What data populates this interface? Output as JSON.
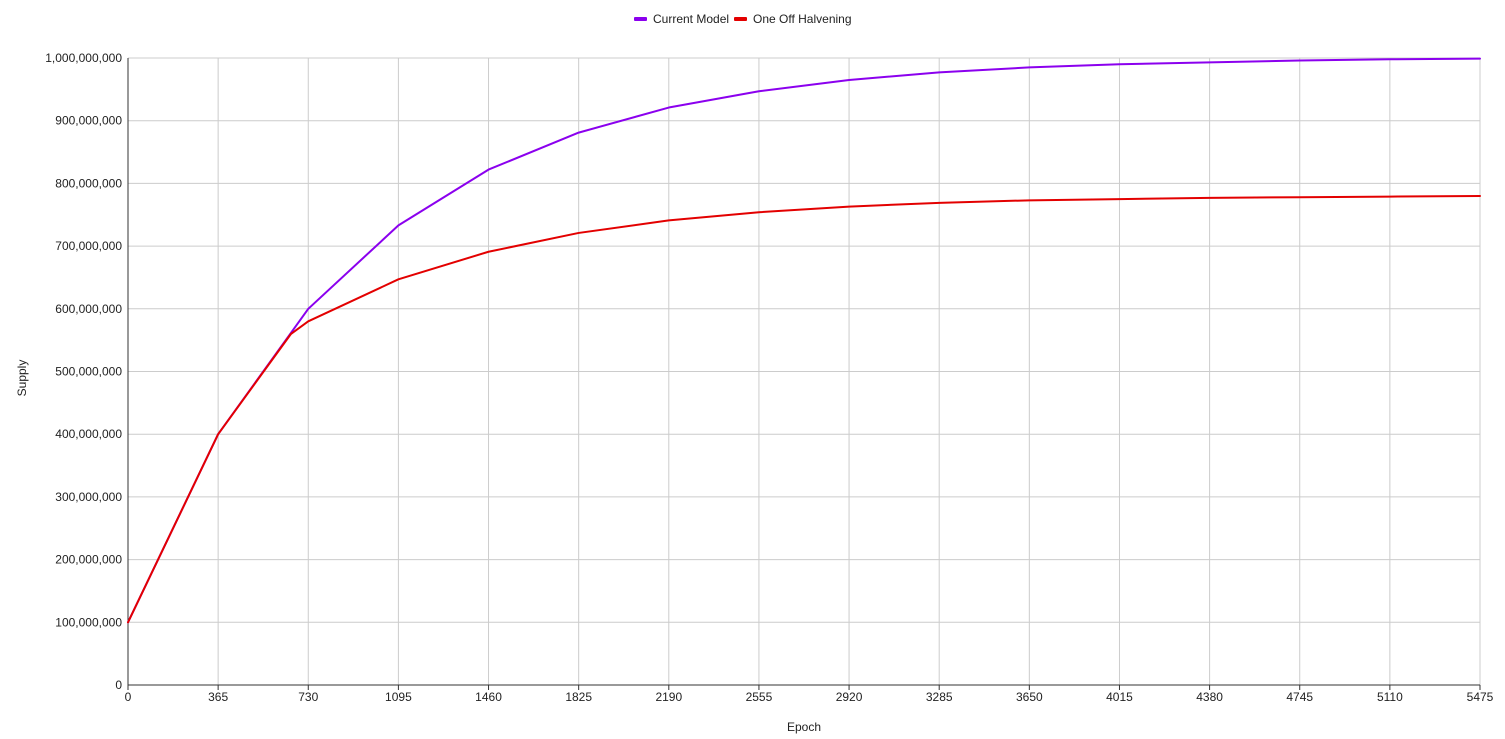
{
  "chart_data": {
    "type": "line",
    "title": "",
    "xlabel": "Epoch",
    "ylabel": "Supply",
    "x": [
      0,
      365,
      730,
      1095,
      1460,
      1825,
      2190,
      2555,
      2920,
      3285,
      3650,
      4015,
      4380,
      4745,
      5110,
      5475
    ],
    "x_ticks": [
      "0",
      "365",
      "730",
      "1095",
      "1460",
      "1825",
      "2190",
      "2555",
      "2920",
      "3285",
      "3650",
      "4015",
      "4380",
      "4745",
      "5110",
      "5475"
    ],
    "xlim": [
      0,
      5475
    ],
    "ylim": [
      0,
      1000000000
    ],
    "y_ticks": [
      {
        "value": 0,
        "label": "0"
      },
      {
        "value": 100000000,
        "label": "100,000,000"
      },
      {
        "value": 200000000,
        "label": "200,000,000"
      },
      {
        "value": 300000000,
        "label": "300,000,000"
      },
      {
        "value": 400000000,
        "label": "400,000,000"
      },
      {
        "value": 500000000,
        "label": "500,000,000"
      },
      {
        "value": 600000000,
        "label": "600,000,000"
      },
      {
        "value": 700000000,
        "label": "700,000,000"
      },
      {
        "value": 800000000,
        "label": "800,000,000"
      },
      {
        "value": 900000000,
        "label": "900,000,000"
      },
      {
        "value": 1000000000,
        "label": "1,000,000,000"
      }
    ],
    "grid": true,
    "legend_position": "top",
    "series": [
      {
        "name": "Current Model",
        "color": "#8b00ee",
        "points": [
          [
            0,
            100000000
          ],
          [
            365,
            400000000
          ],
          [
            730,
            600000000
          ],
          [
            1095,
            733000000
          ],
          [
            1460,
            822000000
          ],
          [
            1825,
            881000000
          ],
          [
            2190,
            921000000
          ],
          [
            2555,
            947000000
          ],
          [
            2920,
            965000000
          ],
          [
            3285,
            977000000
          ],
          [
            3650,
            985000000
          ],
          [
            4015,
            990000000
          ],
          [
            4380,
            993000000
          ],
          [
            4745,
            996000000
          ],
          [
            5110,
            998000000
          ],
          [
            5475,
            999000000
          ]
        ]
      },
      {
        "name": "One Off Halvening",
        "color": "#e30000",
        "points": [
          [
            0,
            100000000
          ],
          [
            365,
            400000000
          ],
          [
            660,
            560000000
          ],
          [
            730,
            580000000
          ],
          [
            1095,
            647000000
          ],
          [
            1460,
            691000000
          ],
          [
            1825,
            721000000
          ],
          [
            2190,
            741000000
          ],
          [
            2555,
            754000000
          ],
          [
            2920,
            763000000
          ],
          [
            3285,
            769000000
          ],
          [
            3650,
            773000000
          ],
          [
            4015,
            775000000
          ],
          [
            4380,
            777000000
          ],
          [
            4745,
            778000000
          ],
          [
            5110,
            779000000
          ],
          [
            5475,
            780000000
          ]
        ]
      }
    ]
  }
}
